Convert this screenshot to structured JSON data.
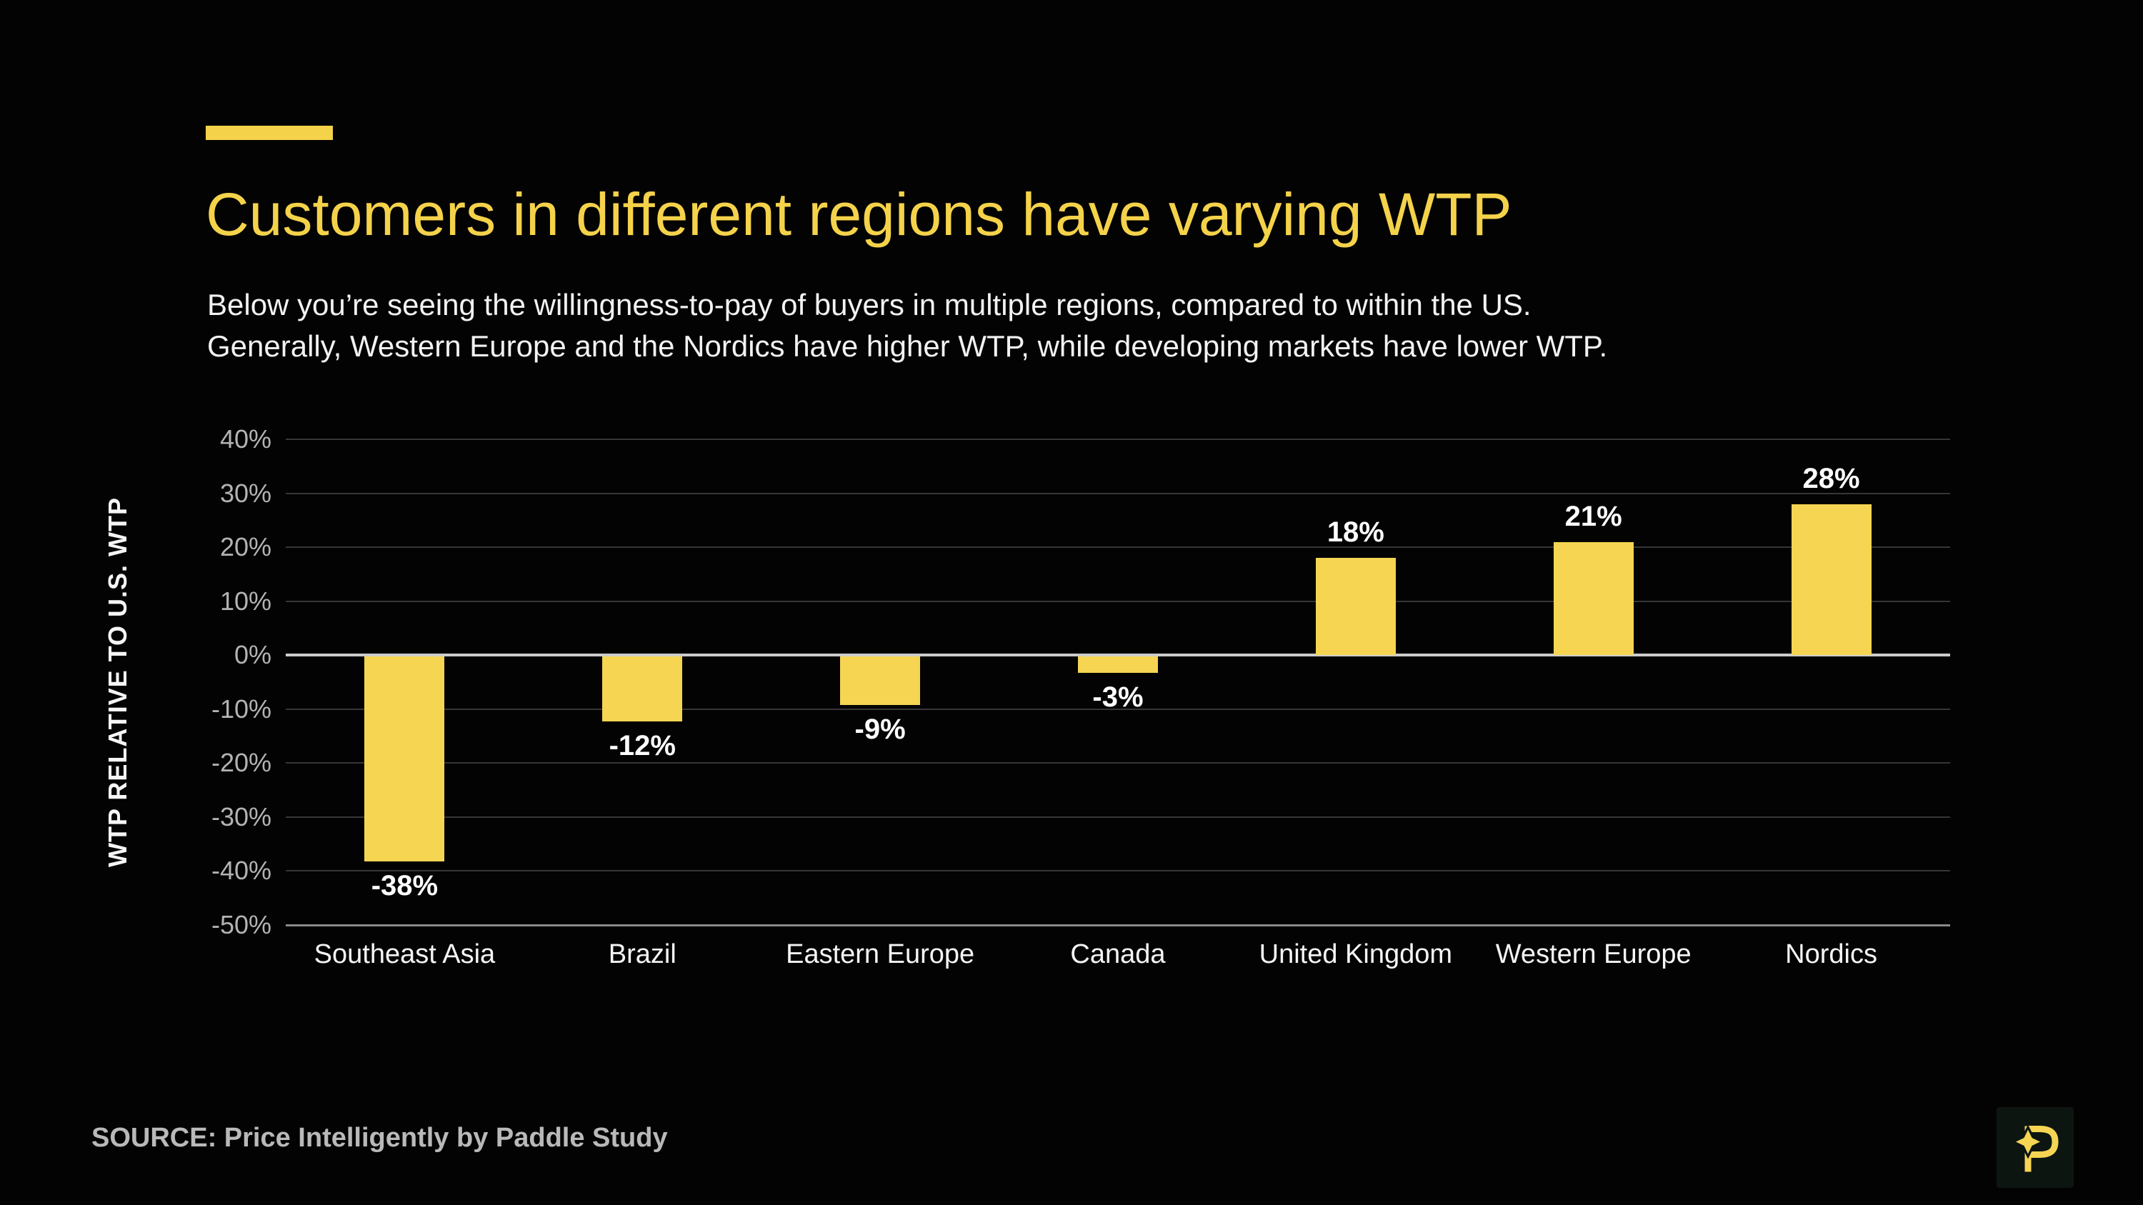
{
  "slide": {
    "title": "Customers in different regions have varying WTP",
    "subtitle_line1": "Below you’re seeing the willingness-to-pay of buyers in multiple regions, compared to within the US.",
    "subtitle_line2": "Generally, Western Europe and the Nordics have higher WTP, while developing markets have lower WTP.",
    "source": "SOURCE: Price Intelligently by Paddle Study"
  },
  "colors": {
    "accent": "#F4D24A",
    "background": "#030303",
    "bar": "#F5D552",
    "gridline": "#363636",
    "zero_line": "#CCCCCC",
    "bottom_axis_line": "#8A8A8A",
    "tick_label": "#B3B3B3",
    "category_label": "#F5F5F5",
    "data_label": "#FFFFFF",
    "source_text": "#B9B9B9",
    "logo_background": "#0D1511",
    "logo_glyph": "#F5D552"
  },
  "icons": {
    "logo": "paddle-logo-p-with-sparkle"
  },
  "chart_data": {
    "type": "bar",
    "title": "",
    "categories": [
      "Southeast Asia",
      "Brazil",
      "Eastern Europe",
      "Canada",
      "United Kingdom",
      "Western Europe",
      "Nordics"
    ],
    "values": [
      -38,
      -12,
      -9,
      -3,
      18,
      21,
      28
    ],
    "data_labels": [
      "-38%",
      "-12%",
      "-9%",
      "-3%",
      "18%",
      "21%",
      "28%"
    ],
    "xlabel": "",
    "ylabel": "WTP RELATIVE TO U.S. WTP",
    "ylim": [
      -50,
      40
    ],
    "ytick_values": [
      40,
      30,
      20,
      10,
      0,
      -10,
      -20,
      -30,
      -40,
      -50
    ],
    "ytick_labels": [
      "40%",
      "30%",
      "20%",
      "10%",
      "0%",
      "-10%",
      "-20%",
      "-30%",
      "-40%",
      "-50%"
    ],
    "grid": "horizontal",
    "legend": "none"
  }
}
